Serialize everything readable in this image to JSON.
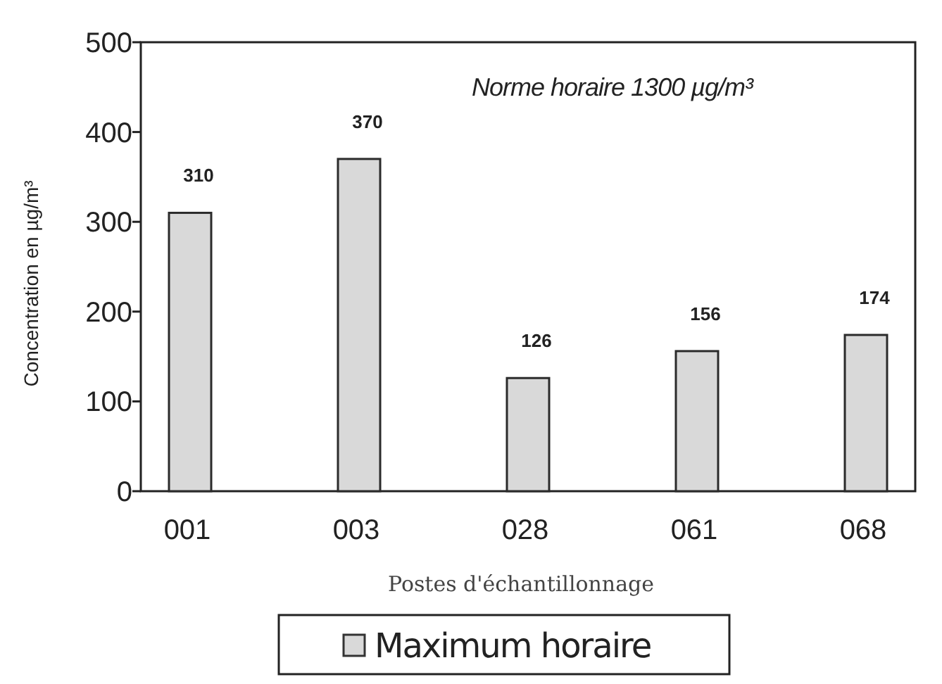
{
  "chart_data": {
    "type": "bar",
    "categories": [
      "001",
      "003",
      "028",
      "061",
      "068"
    ],
    "series": [
      {
        "name": "Maximum horaire",
        "color": "#d9d9d9",
        "values": [
          310,
          370,
          126,
          156,
          174
        ]
      }
    ],
    "ylim": [
      0,
      500
    ],
    "yticks": [
      0,
      100,
      200,
      300,
      400,
      500
    ],
    "ylabel": "Concentration en µg/m³",
    "xlabel": "Postes d'échantillonnage",
    "annotations": [
      "Norme horaire 1300 µg/m³"
    ],
    "data_labels": true,
    "legend": "bottom"
  }
}
